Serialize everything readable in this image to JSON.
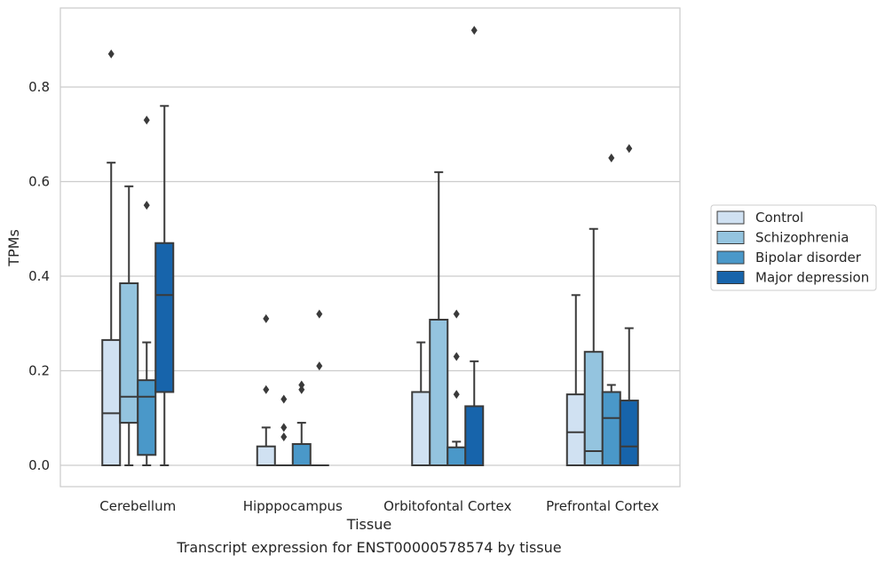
{
  "chart_data": {
    "type": "box",
    "caption": "Transcript expression for ENST00000578574 by tissue",
    "xlabel": "Tissue",
    "ylabel": "TPMs",
    "ylim": [
      -0.045,
      0.97
    ],
    "yticks": [
      0.0,
      0.2,
      0.4,
      0.6,
      0.8
    ],
    "ytick_labels": [
      "0.0",
      "0.2",
      "0.4",
      "0.6",
      "0.8"
    ],
    "grid": "horizontal",
    "legend_position": "right",
    "categories": [
      "Cerebellum",
      "Hipppocampus",
      "Orbitofontal Cortex",
      "Prefrontal Cortex"
    ],
    "series": [
      {
        "name": "Control",
        "color": "#d0e1f2",
        "boxes": [
          {
            "whisker_low": 0.0,
            "q1": 0.0,
            "median": 0.11,
            "q3": 0.265,
            "whisker_high": 0.64,
            "outliers": [
              0.87
            ]
          },
          {
            "whisker_low": 0.0,
            "q1": 0.0,
            "median": 0.0,
            "q3": 0.04,
            "whisker_high": 0.08,
            "outliers": [
              0.16,
              0.31
            ]
          },
          {
            "whisker_low": 0.0,
            "q1": 0.0,
            "median": 0.0,
            "q3": 0.155,
            "whisker_high": 0.26,
            "outliers": []
          },
          {
            "whisker_low": 0.0,
            "q1": 0.0,
            "median": 0.07,
            "q3": 0.15,
            "whisker_high": 0.36,
            "outliers": []
          }
        ]
      },
      {
        "name": "Schizophrenia",
        "color": "#94c4df",
        "boxes": [
          {
            "whisker_low": 0.0,
            "q1": 0.09,
            "median": 0.145,
            "q3": 0.385,
            "whisker_high": 0.59,
            "outliers": []
          },
          {
            "whisker_low": 0.0,
            "q1": 0.0,
            "median": 0.0,
            "q3": 0.0,
            "whisker_high": 0.0,
            "outliers": [
              0.06,
              0.08,
              0.14
            ]
          },
          {
            "whisker_low": 0.0,
            "q1": 0.0,
            "median": 0.0,
            "q3": 0.308,
            "whisker_high": 0.62,
            "outliers": []
          },
          {
            "whisker_low": 0.0,
            "q1": 0.0,
            "median": 0.03,
            "q3": 0.24,
            "whisker_high": 0.5,
            "outliers": []
          }
        ]
      },
      {
        "name": "Bipolar disorder",
        "color": "#4a98c9",
        "boxes": [
          {
            "whisker_low": 0.0,
            "q1": 0.022,
            "median": 0.145,
            "q3": 0.18,
            "whisker_high": 0.26,
            "outliers": [
              0.55,
              0.73
            ]
          },
          {
            "whisker_low": 0.0,
            "q1": 0.0,
            "median": 0.0,
            "q3": 0.045,
            "whisker_high": 0.09,
            "outliers": [
              0.16,
              0.17
            ]
          },
          {
            "whisker_low": 0.0,
            "q1": 0.0,
            "median": 0.0,
            "q3": 0.038,
            "whisker_high": 0.05,
            "outliers": [
              0.15,
              0.23,
              0.32
            ]
          },
          {
            "whisker_low": 0.0,
            "q1": 0.0,
            "median": 0.1,
            "q3": 0.155,
            "whisker_high": 0.17,
            "outliers": [
              0.65
            ]
          }
        ]
      },
      {
        "name": "Major depression",
        "color": "#1764ab",
        "boxes": [
          {
            "whisker_low": 0.0,
            "q1": 0.155,
            "median": 0.36,
            "q3": 0.47,
            "whisker_high": 0.76,
            "outliers": []
          },
          {
            "whisker_low": 0.0,
            "q1": 0.0,
            "median": 0.0,
            "q3": 0.0,
            "whisker_high": 0.0,
            "outliers": [
              0.21,
              0.32
            ]
          },
          {
            "whisker_low": 0.0,
            "q1": 0.0,
            "median": 0.0,
            "q3": 0.125,
            "whisker_high": 0.22,
            "outliers": [
              0.92
            ]
          },
          {
            "whisker_low": 0.0,
            "q1": 0.0,
            "median": 0.04,
            "q3": 0.137,
            "whisker_high": 0.29,
            "outliers": [
              0.67
            ]
          }
        ]
      }
    ]
  }
}
